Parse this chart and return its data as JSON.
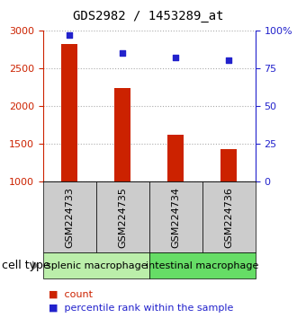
{
  "title": "GDS2982 / 1453289_at",
  "samples": [
    "GSM224733",
    "GSM224735",
    "GSM224734",
    "GSM224736"
  ],
  "counts": [
    2820,
    2230,
    1610,
    1430
  ],
  "percentile_ranks": [
    97,
    85,
    82,
    80
  ],
  "ylim_left": [
    1000,
    3000
  ],
  "ylim_right": [
    0,
    100
  ],
  "yticks_left": [
    1000,
    1500,
    2000,
    2500,
    3000
  ],
  "yticks_right": [
    0,
    25,
    50,
    75,
    100
  ],
  "bar_color": "#cc2200",
  "dot_color": "#2222cc",
  "bar_bottom": 1000,
  "groups": [
    {
      "label": "splenic macrophage",
      "color": "#bbeeaa",
      "samples": [
        0,
        1
      ]
    },
    {
      "label": "intestinal macrophage",
      "color": "#66dd66",
      "samples": [
        2,
        3
      ]
    }
  ],
  "cell_type_label": "cell type",
  "legend_count_label": "count",
  "legend_pct_label": "percentile rank within the sample",
  "left_tick_color": "#cc2200",
  "right_tick_color": "#2222cc",
  "grid_color": "#aaaaaa",
  "sample_box_color": "#cccccc",
  "title_fontsize": 10,
  "tick_fontsize": 8,
  "sample_fontsize": 8,
  "group_fontsize": 8,
  "legend_fontsize": 8,
  "celltypelabel_fontsize": 9
}
